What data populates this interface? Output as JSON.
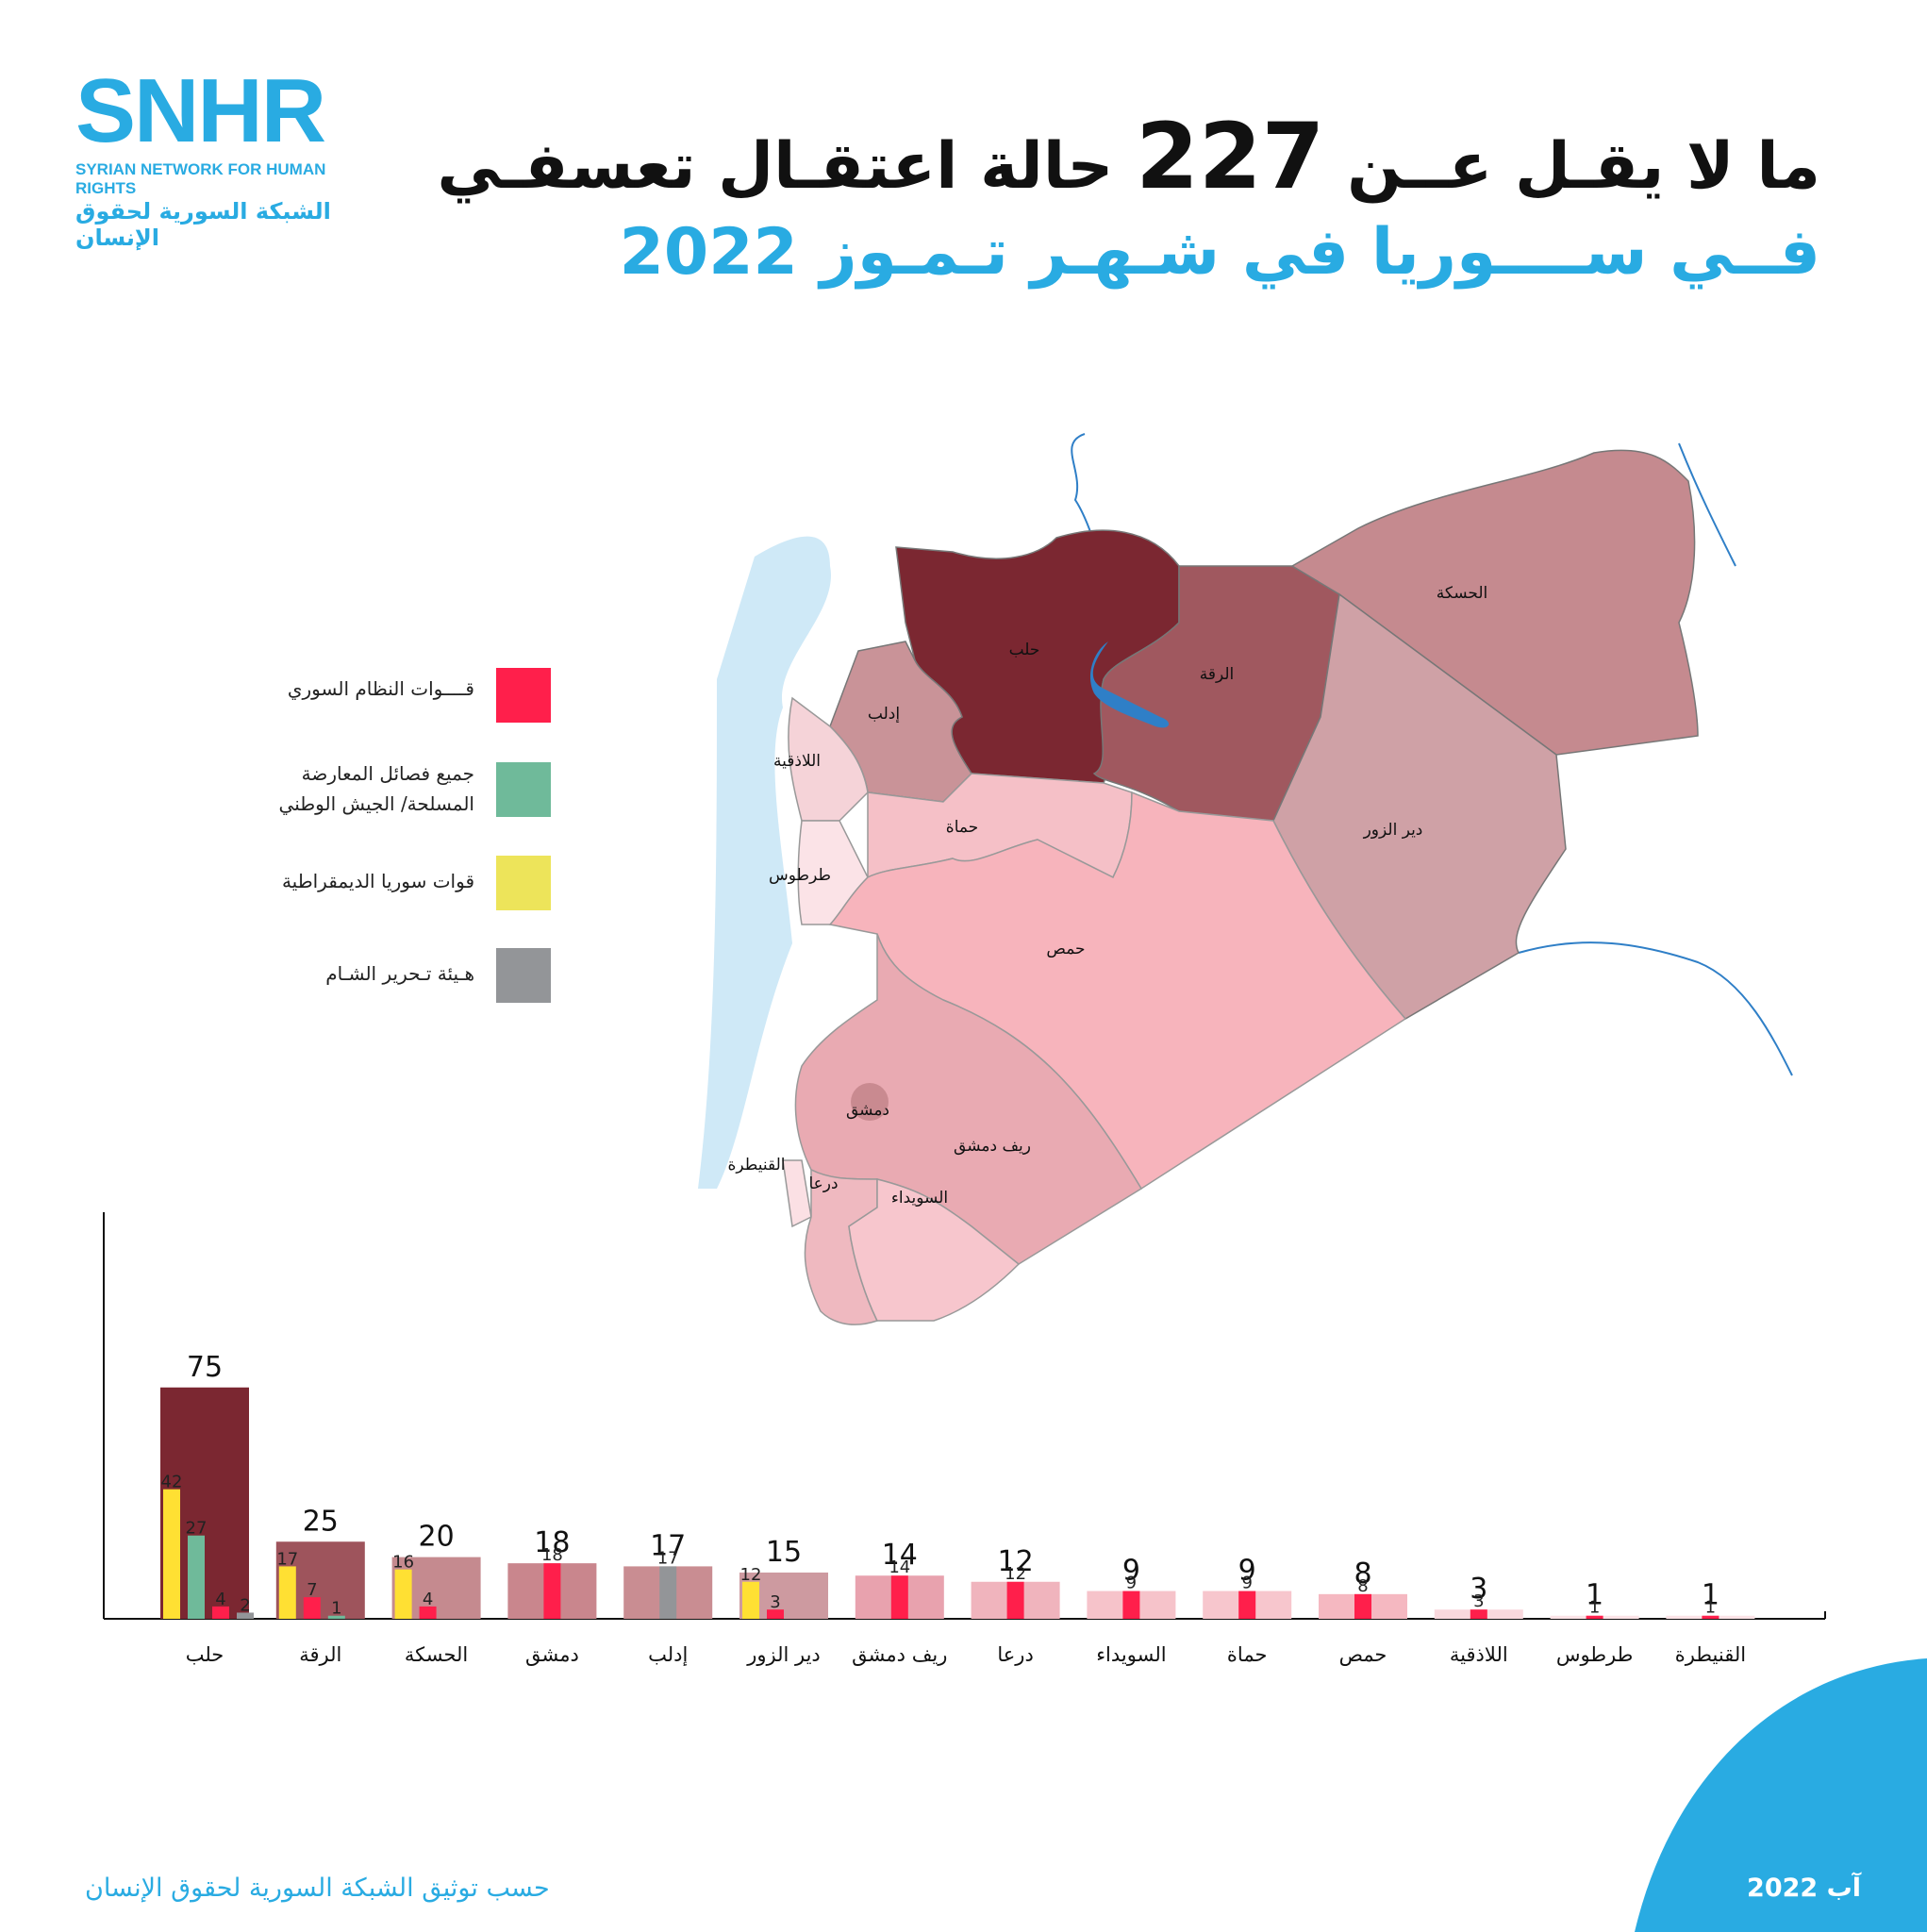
{
  "logo": {
    "mark": "SNHR",
    "english": "SYRIAN NETWORK FOR HUMAN RIGHTS",
    "arabic": "الشبكة السورية لحقوق الإنسان"
  },
  "title": {
    "line1_pre": "ما لا يقـل عــن",
    "line1_number": "227",
    "line1_post": "حالة اعتقـال تعسفـي",
    "line2": "فــي ســــوريا في شـهـر تـمـوز 2022"
  },
  "legend": [
    {
      "label": "قــــوات النظام السوري",
      "color": "#ff1f4b"
    },
    {
      "label": "جميع فصائل المعارضة\nالمسلحة/ الجيش الوطني",
      "color": "#6fba9a"
    },
    {
      "label": "قوات سوريا الديمقراطية",
      "color": "#ede45a"
    },
    {
      "label": "هـيئة تـحرير الشـام",
      "color": "#939598"
    }
  ],
  "map_labels": [
    "حلب",
    "الرقة",
    "الحسكة",
    "إدلب",
    "اللاذقية",
    "حماة",
    "طرطوس",
    "دير الزور",
    "حمص",
    "دمشق",
    "ريف دمشق",
    "القنيطرة",
    "درعا",
    "السويداء"
  ],
  "chart_data": {
    "type": "bar",
    "categories": [
      "حلب",
      "الرقة",
      "الحسكة",
      "دمشق",
      "إدلب",
      "دير الزور",
      "ريف دمشق",
      "درعا",
      "السويداء",
      "حماة",
      "حمص",
      "اللاذقية",
      "طرطوس",
      "القنيطرة"
    ],
    "totals": [
      75,
      25,
      20,
      18,
      17,
      15,
      14,
      12,
      9,
      9,
      8,
      3,
      1,
      1
    ],
    "total_colors": [
      "#7b2731",
      "#9e545c",
      "#c58a8f",
      "#c9868d",
      "#c98d92",
      "#cd9aa0",
      "#e8a2ae",
      "#f0b4bd",
      "#f6c3ca",
      "#f7c6cd",
      "#f5b8c1",
      "#f9d8dd",
      "#fbe3e7",
      "#fbe3e7"
    ],
    "breakdown": [
      [
        {
          "v": 42,
          "c": "#ffe033"
        },
        {
          "v": 27,
          "c": "#6fba9a"
        },
        {
          "v": 4,
          "c": "#ff1f4b"
        },
        {
          "v": 2,
          "c": "#939598"
        }
      ],
      [
        {
          "v": 17,
          "c": "#ffe033"
        },
        {
          "v": 7,
          "c": "#ff1f4b"
        },
        {
          "v": 1,
          "c": "#6fba9a"
        }
      ],
      [
        {
          "v": 16,
          "c": "#ffe033"
        },
        {
          "v": 4,
          "c": "#ff1f4b"
        }
      ],
      [
        {
          "v": 18,
          "c": "#ff1f4b"
        }
      ],
      [
        {
          "v": 17,
          "c": "#939598"
        }
      ],
      [
        {
          "v": 12,
          "c": "#ffe033"
        },
        {
          "v": 3,
          "c": "#ff1f4b"
        }
      ],
      [
        {
          "v": 14,
          "c": "#ff1f4b"
        }
      ],
      [
        {
          "v": 12,
          "c": "#ff1f4b"
        }
      ],
      [
        {
          "v": 9,
          "c": "#ff1f4b"
        }
      ],
      [
        {
          "v": 9,
          "c": "#ff1f4b"
        }
      ],
      [
        {
          "v": 8,
          "c": "#ff1f4b"
        }
      ],
      [
        {
          "v": 3,
          "c": "#ff1f4b"
        }
      ],
      [
        {
          "v": 1,
          "c": "#ff1f4b"
        }
      ],
      [
        {
          "v": 1,
          "c": "#ff1f4b"
        }
      ]
    ]
  },
  "footer": {
    "source": "حسب توثيق الشبكة السورية لحقوق الإنسان",
    "date": "آب 2022"
  }
}
